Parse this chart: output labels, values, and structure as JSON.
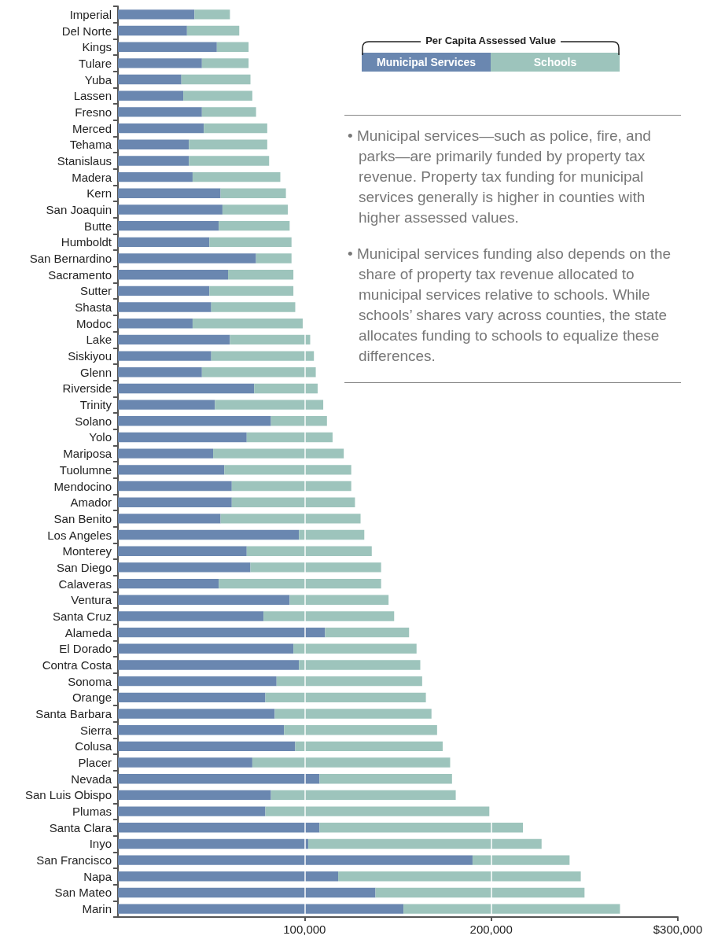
{
  "chart_data": {
    "type": "bar",
    "orientation": "horizontal",
    "stacked": true,
    "categories": [
      "Imperial",
      "Del Norte",
      "Kings",
      "Tulare",
      "Yuba",
      "Lassen",
      "Fresno",
      "Merced",
      "Tehama",
      "Stanislaus",
      "Madera",
      "Kern",
      "San Joaquin",
      "Butte",
      "Humboldt",
      "San Bernardino",
      "Sacramento",
      "Sutter",
      "Shasta",
      "Modoc",
      "Lake",
      "Siskiyou",
      "Glenn",
      "Riverside",
      "Trinity",
      "Solano",
      "Yolo",
      "Mariposa",
      "Tuolumne",
      "Mendocino",
      "Amador",
      "San Benito",
      "Los Angeles",
      "Monterey",
      "San Diego",
      "Calaveras",
      "Ventura",
      "Santa Cruz",
      "Alameda",
      "El Dorado",
      "Contra Costa",
      "Sonoma",
      "Orange",
      "Santa Barbara",
      "Sierra",
      "Colusa",
      "Placer",
      "Nevada",
      "San Luis Obispo",
      "Plumas",
      "Santa Clara",
      "Inyo",
      "San Francisco",
      "Napa",
      "San Mateo",
      "Marin"
    ],
    "series": [
      {
        "name": "Municipal Services",
        "color": "#6a87b0",
        "values": [
          41000,
          37000,
          53000,
          45000,
          34000,
          35000,
          45000,
          46000,
          38000,
          38000,
          40000,
          55000,
          56000,
          54000,
          49000,
          74000,
          59000,
          49000,
          50000,
          40000,
          60000,
          50000,
          45000,
          73000,
          52000,
          82000,
          69000,
          51000,
          57000,
          61000,
          61000,
          55000,
          97000,
          69000,
          71000,
          54000,
          92000,
          78000,
          111000,
          94000,
          97000,
          85000,
          79000,
          84000,
          89000,
          95000,
          72000,
          108000,
          82000,
          79000,
          108000,
          102000,
          190000,
          118000,
          138000,
          153000
        ]
      },
      {
        "name": "Schools",
        "color": "#9dc4bc",
        "values": [
          19000,
          28000,
          17000,
          25000,
          37000,
          37000,
          29000,
          34000,
          42000,
          43000,
          47000,
          35000,
          35000,
          38000,
          44000,
          19000,
          35000,
          45000,
          45000,
          59000,
          43000,
          55000,
          61000,
          34000,
          58000,
          30000,
          46000,
          70000,
          68000,
          64000,
          66000,
          75000,
          35000,
          67000,
          70000,
          87000,
          53000,
          70000,
          45000,
          66000,
          65000,
          78000,
          86000,
          84000,
          82000,
          79000,
          106000,
          71000,
          99000,
          120000,
          109000,
          125000,
          52000,
          130000,
          112000,
          116000
        ]
      }
    ],
    "xlim": [
      0,
      300000
    ],
    "xticks": [
      {
        "value": 100000,
        "label": "100,000"
      },
      {
        "value": 200000,
        "label": "200,000"
      },
      {
        "value": 300000,
        "label": "$300,000"
      }
    ],
    "grid": "x",
    "legend": "top right",
    "legend_title": "Per Capita Assessed Value",
    "annotations": [
      "• Municipal services—such as police, fire, and parks—are primarily funded by property tax revenue. Property tax funding for municipal services generally is higher in counties with higher assessed values.",
      "• Municipal services funding also depends on the share of property tax revenue allocated to municipal services relative to schools. While schools’ shares vary across counties, the state allocates funding to schools to equalize these differences."
    ]
  }
}
